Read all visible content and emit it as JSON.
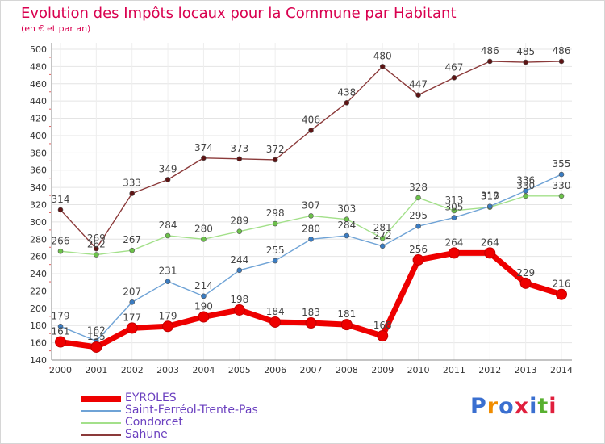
{
  "header": {
    "title": "Evolution des Impôts locaux pour la Commune par Habitant",
    "subtitle": "(en € et par an)"
  },
  "logo": {
    "text": "Proxiti"
  },
  "chart_data": {
    "type": "line",
    "title": "Evolution des Impôts locaux pour la Commune par Habitant",
    "subtitle": "(en € et par an)",
    "x": [
      2000,
      2001,
      2002,
      2003,
      2004,
      2005,
      2006,
      2007,
      2008,
      2009,
      2010,
      2011,
      2012,
      2013,
      2014
    ],
    "ylim": [
      140,
      500
    ],
    "yticks": [
      140,
      160,
      180,
      200,
      220,
      240,
      260,
      280,
      300,
      320,
      340,
      360,
      380,
      400,
      420,
      440,
      460,
      480,
      500
    ],
    "grid": true,
    "legend_position": "bottom-left",
    "series": [
      {
        "name": "EYROLES",
        "color": "#ee0000",
        "point_color": "#ee0000",
        "values": [
          161,
          155,
          177,
          179,
          190,
          198,
          184,
          183,
          181,
          168,
          256,
          264,
          264,
          229,
          216
        ],
        "labels": [
          "161",
          "155",
          "177",
          "179",
          "190",
          "198",
          "184",
          "183",
          "181",
          "168",
          "256",
          "264",
          "264",
          "229",
          "216"
        ]
      },
      {
        "name": "Saint-Ferréol-Trente-Pas",
        "color": "#6fa3d6",
        "point_color": "#3a7cc2",
        "values": [
          179,
          162,
          207,
          231,
          214,
          244,
          255,
          280,
          284,
          272,
          295,
          305,
          318,
          336,
          355
        ],
        "labels": [
          "179",
          "162",
          "207",
          "231",
          "214",
          "244",
          "255",
          "280",
          "284",
          "272",
          "295",
          "305",
          "318",
          "336",
          "355"
        ]
      },
      {
        "name": "Condorcet",
        "color": "#a3e08a",
        "point_color": "#6cc24a",
        "values": [
          266,
          262,
          267,
          284,
          280,
          289,
          298,
          307,
          303,
          281,
          328,
          313,
          317,
          330,
          330
        ],
        "labels": [
          "266",
          "262",
          "267",
          "284",
          "280",
          "289",
          "298",
          "307",
          "303",
          "281",
          "328",
          "313",
          "317",
          "330",
          "330"
        ]
      },
      {
        "name": "Sahune",
        "color": "#8b3a3a",
        "point_color": "#5e1414",
        "values": [
          314,
          269,
          333,
          349,
          374,
          373,
          372,
          406,
          438,
          480,
          447,
          467,
          486,
          485,
          486
        ],
        "labels": [
          "314",
          "269",
          "333",
          "349",
          "374",
          "373",
          "372",
          "406",
          "438",
          "480",
          "447",
          "467",
          "486",
          "485",
          "486"
        ]
      }
    ]
  }
}
